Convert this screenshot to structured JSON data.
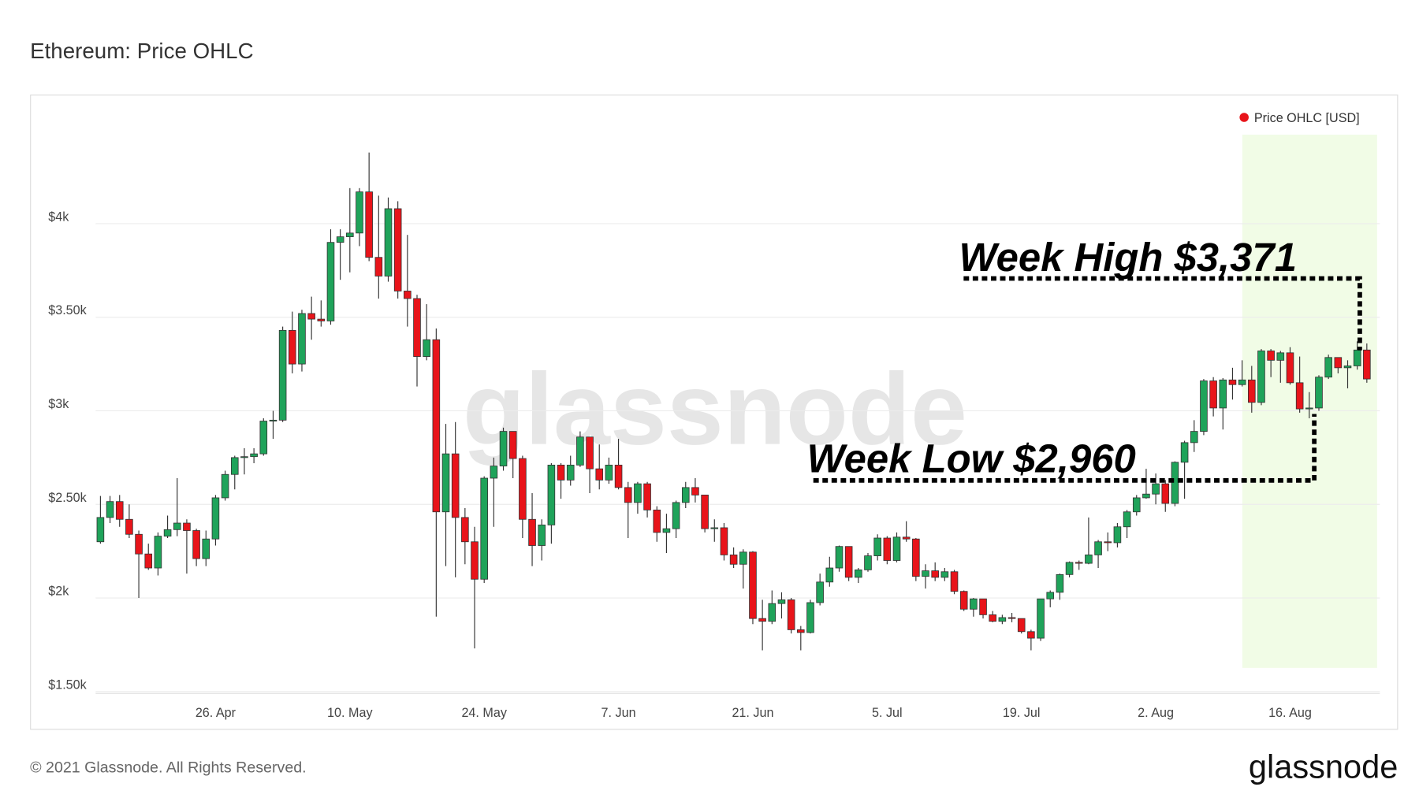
{
  "chart_data": {
    "type": "candlestick",
    "title": "Ethereum: Price OHLC",
    "legend": "Price OHLC [USD]",
    "legend_color": "#e8141a",
    "legend_position": "top-right",
    "watermark": "glassnode",
    "annotations": [
      "Week High $3,371",
      "Week Low $2,960"
    ],
    "up_color": "#1fa35a",
    "down_color": "#e8141a",
    "grid": true,
    "ylim": [
      1490,
      4500
    ],
    "yticks": [
      {
        "value": 1500,
        "label": "$1.50k"
      },
      {
        "value": 2000,
        "label": "$2k"
      },
      {
        "value": 2500,
        "label": "$2.50k"
      },
      {
        "value": 3000,
        "label": "$3k"
      },
      {
        "value": 3500,
        "label": "$3.50k"
      },
      {
        "value": 4000,
        "label": "$4k"
      }
    ],
    "categories": [
      null,
      null,
      null,
      null,
      null,
      null,
      null,
      null,
      null,
      null,
      null,
      null,
      "26. Apr",
      null,
      null,
      null,
      null,
      null,
      null,
      null,
      null,
      null,
      null,
      null,
      null,
      null,
      "10. May",
      null,
      null,
      null,
      null,
      null,
      null,
      null,
      null,
      null,
      null,
      null,
      null,
      null,
      "24. May",
      null,
      null,
      null,
      null,
      null,
      null,
      null,
      null,
      null,
      null,
      null,
      null,
      null,
      "7. Jun",
      null,
      null,
      null,
      null,
      null,
      null,
      null,
      null,
      null,
      null,
      null,
      null,
      null,
      "21. Jun",
      null,
      null,
      null,
      null,
      null,
      null,
      null,
      null,
      null,
      null,
      null,
      null,
      null,
      "5. Jul",
      null,
      null,
      null,
      null,
      null,
      null,
      null,
      null,
      null,
      null,
      null,
      null,
      null,
      "19. Jul",
      null,
      null,
      null,
      null,
      null,
      null,
      null,
      null,
      null,
      null,
      null,
      null,
      null,
      "2. Aug",
      null,
      null,
      null,
      null,
      null,
      null,
      null,
      null,
      null,
      null,
      null,
      null,
      null,
      "16. Aug",
      null,
      null,
      null,
      null,
      null,
      null,
      null,
      null
    ],
    "open": [
      2300,
      2430,
      2515,
      2420,
      2340,
      2235,
      2160,
      2330,
      2365,
      2400,
      2360,
      2210,
      2315,
      2535,
      2660,
      2750,
      2755,
      2770,
      2945,
      2950,
      3430,
      3250,
      3520,
      3490,
      3480,
      3900,
      3930,
      3950,
      4170,
      3820,
      3720,
      4080,
      3640,
      3600,
      3290,
      3380,
      2460,
      2770,
      2430,
      2300,
      2100,
      2640,
      2705,
      2890,
      2745,
      2420,
      2280,
      2390,
      2710,
      2630,
      2710,
      2860,
      2690,
      2630,
      2710,
      2590,
      2510,
      2610,
      2470,
      2350,
      2370,
      2510,
      2590,
      2550,
      2370,
      2375,
      2230,
      2180,
      2245,
      1890,
      1875,
      1970,
      1990,
      1830,
      1815,
      1975,
      2085,
      2160,
      2275,
      2110,
      2150,
      2225,
      2320,
      2200,
      2325,
      2315,
      2115,
      2145,
      2110,
      2140,
      2035,
      1940,
      1995,
      1910,
      1875,
      1895,
      1890,
      1820,
      1785,
      1995,
      2030,
      2125,
      2190,
      2185,
      2230,
      2300,
      2295,
      2380,
      2460,
      2535,
      2555,
      2610,
      2505,
      2725,
      2830,
      2890,
      3160,
      3015,
      3165,
      3140,
      3165,
      3045,
      3320,
      3270,
      3310,
      3150,
      3010,
      3015,
      3180,
      3285,
      3230,
      3240,
      3325
    ],
    "high": [
      2545,
      2545,
      2550,
      2500,
      2360,
      2290,
      2350,
      2440,
      2640,
      2420,
      2370,
      2360,
      2550,
      2680,
      2760,
      2800,
      2800,
      2960,
      3000,
      3450,
      3530,
      3540,
      3610,
      3590,
      3970,
      3970,
      4190,
      4190,
      4380,
      4150,
      4140,
      4120,
      3940,
      3620,
      3570,
      3440,
      2930,
      2940,
      2480,
      2380,
      2650,
      2750,
      2910,
      2890,
      2760,
      2560,
      2420,
      2720,
      2720,
      2760,
      2890,
      2860,
      2820,
      2750,
      2850,
      2620,
      2620,
      2620,
      2490,
      2450,
      2520,
      2620,
      2640,
      2550,
      2420,
      2400,
      2270,
      2260,
      2250,
      1990,
      2040,
      2030,
      2000,
      1850,
      1990,
      2130,
      2220,
      2280,
      2275,
      2160,
      2240,
      2340,
      2330,
      2350,
      2410,
      2320,
      2180,
      2190,
      2160,
      2150,
      2040,
      2000,
      1995,
      1930,
      1910,
      1920,
      1890,
      1830,
      1995,
      2040,
      2130,
      2195,
      2200,
      2430,
      2310,
      2350,
      2400,
      2470,
      2550,
      2690,
      2665,
      2630,
      2730,
      2840,
      2950,
      3170,
      3180,
      3175,
      3230,
      3270,
      3240,
      3330,
      3330,
      3320,
      3340,
      3290,
      3100,
      3190,
      3300,
      3285,
      3270,
      3371,
      3360
    ],
    "low": [
      2290,
      2400,
      2380,
      2320,
      2000,
      2150,
      2120,
      2320,
      2330,
      2130,
      2170,
      2170,
      2280,
      2520,
      2580,
      2660,
      2720,
      2760,
      2850,
      2940,
      3200,
      3210,
      3380,
      3450,
      3460,
      3700,
      3740,
      3880,
      3800,
      3600,
      3690,
      3600,
      3450,
      3130,
      3270,
      1900,
      2170,
      2110,
      2180,
      1730,
      2080,
      2380,
      2680,
      2640,
      2320,
      2170,
      2200,
      2290,
      2530,
      2600,
      2700,
      2560,
      2580,
      2610,
      2580,
      2320,
      2450,
      2430,
      2300,
      2240,
      2320,
      2480,
      2510,
      2350,
      2300,
      2200,
      2160,
      2050,
      1860,
      1720,
      1860,
      1890,
      1810,
      1720,
      1810,
      1960,
      2060,
      2140,
      2090,
      2080,
      2140,
      2200,
      2180,
      2190,
      2300,
      2090,
      2050,
      2090,
      2090,
      2020,
      1930,
      1900,
      1890,
      1870,
      1860,
      1870,
      1810,
      1720,
      1770,
      1950,
      1990,
      2110,
      2150,
      2180,
      2160,
      2250,
      2270,
      2320,
      2440,
      2530,
      2500,
      2460,
      2490,
      2530,
      2780,
      2870,
      2970,
      2900,
      3060,
      3130,
      2990,
      3030,
      3180,
      3150,
      3140,
      2990,
      2960,
      3000,
      3170,
      3200,
      3120,
      3220,
      3150
    ],
    "close": [
      2430,
      2515,
      2420,
      2340,
      2235,
      2160,
      2330,
      2365,
      2400,
      2360,
      2210,
      2315,
      2535,
      2660,
      2750,
      2755,
      2770,
      2945,
      2950,
      3430,
      3250,
      3520,
      3490,
      3480,
      3900,
      3930,
      3950,
      4170,
      3820,
      3720,
      4080,
      3640,
      3600,
      3290,
      3380,
      2460,
      2770,
      2430,
      2300,
      2100,
      2640,
      2705,
      2890,
      2745,
      2420,
      2280,
      2390,
      2710,
      2630,
      2710,
      2860,
      2690,
      2630,
      2710,
      2590,
      2510,
      2610,
      2470,
      2350,
      2370,
      2510,
      2590,
      2550,
      2370,
      2375,
      2230,
      2180,
      2245,
      1890,
      1875,
      1970,
      1990,
      1830,
      1815,
      1975,
      2085,
      2160,
      2275,
      2110,
      2150,
      2225,
      2320,
      2200,
      2325,
      2315,
      2115,
      2145,
      2110,
      2140,
      2035,
      1940,
      1995,
      1910,
      1875,
      1895,
      1890,
      1820,
      1785,
      1995,
      2030,
      2125,
      2190,
      2185,
      2230,
      2300,
      2295,
      2380,
      2460,
      2535,
      2555,
      2610,
      2505,
      2725,
      2830,
      2890,
      3160,
      3015,
      3165,
      3140,
      3165,
      3045,
      3320,
      3270,
      3310,
      3150,
      3010,
      3015,
      3180,
      3285,
      3230,
      3240,
      3325,
      3170
    ]
  },
  "footer": {
    "copyright": "© 2021 Glassnode. All Rights Reserved.",
    "logo": "glassnode"
  }
}
